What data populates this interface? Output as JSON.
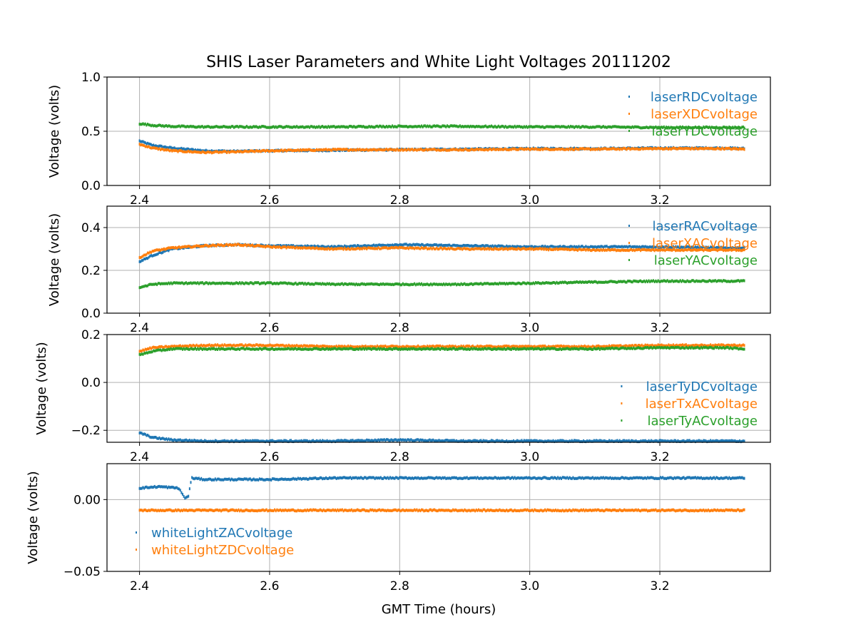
{
  "title": "SHIS Laser Parameters and White Light Voltages 20111202",
  "xlabel": "GMT Time (hours)",
  "colors": {
    "C0": "#1f77b4",
    "C1": "#ff7f0e",
    "C2": "#2ca02c",
    "grid": "#b0b0b0",
    "axes": "#000000"
  },
  "chart_data": [
    {
      "type": "scatter",
      "ylabel": "Voltage (volts)",
      "xlim": [
        2.35,
        3.37
      ],
      "ylim": [
        0.0,
        1.0
      ],
      "xticks": [
        2.4,
        2.6,
        2.8,
        3.0,
        3.2
      ],
      "xtick_labels": [
        "2.4",
        "2.6",
        "2.8",
        "3.0",
        "3.2"
      ],
      "yticks": [
        0.0,
        0.5,
        1.0
      ],
      "ytick_labels": [
        "0.0",
        "0.5",
        "1.0"
      ],
      "grid": true,
      "legend_position": "upper-right",
      "series": [
        {
          "name": "laserRDCvoltage",
          "color": "#1f77b4",
          "x": [
            2.4,
            2.42,
            2.45,
            2.5,
            2.55,
            2.6,
            2.7,
            2.8,
            2.9,
            3.0,
            3.1,
            3.2,
            3.3,
            3.33
          ],
          "y": [
            0.41,
            0.37,
            0.345,
            0.32,
            0.315,
            0.32,
            0.325,
            0.33,
            0.335,
            0.34,
            0.34,
            0.345,
            0.345,
            0.34
          ]
        },
        {
          "name": "laserXDCvoltage",
          "color": "#ff7f0e",
          "x": [
            2.4,
            2.42,
            2.45,
            2.5,
            2.55,
            2.6,
            2.7,
            2.8,
            2.9,
            3.0,
            3.1,
            3.2,
            3.3,
            3.33
          ],
          "y": [
            0.38,
            0.345,
            0.32,
            0.305,
            0.31,
            0.32,
            0.33,
            0.33,
            0.33,
            0.335,
            0.335,
            0.34,
            0.34,
            0.335
          ]
        },
        {
          "name": "laserYDCvoltage",
          "color": "#2ca02c",
          "x": [
            2.4,
            2.42,
            2.45,
            2.5,
            2.6,
            2.7,
            2.8,
            2.9,
            3.0,
            3.1,
            3.2,
            3.3,
            3.33
          ],
          "y": [
            0.57,
            0.555,
            0.545,
            0.54,
            0.54,
            0.54,
            0.545,
            0.545,
            0.54,
            0.54,
            0.535,
            0.535,
            0.535
          ]
        }
      ]
    },
    {
      "type": "scatter",
      "ylabel": "Voltage (volts)",
      "xlim": [
        2.35,
        3.37
      ],
      "ylim": [
        0.0,
        0.5
      ],
      "xticks": [
        2.4,
        2.6,
        2.8,
        3.0,
        3.2
      ],
      "xtick_labels": [
        "2.4",
        "2.6",
        "2.8",
        "3.0",
        "3.2"
      ],
      "yticks": [
        0.0,
        0.2,
        0.4
      ],
      "ytick_labels": [
        "0.0",
        "0.2",
        "0.4"
      ],
      "grid": true,
      "legend_position": "upper-right",
      "series": [
        {
          "name": "laserRACvoltage",
          "color": "#1f77b4",
          "x": [
            2.4,
            2.42,
            2.45,
            2.5,
            2.55,
            2.6,
            2.7,
            2.8,
            2.9,
            3.0,
            3.1,
            3.2,
            3.3,
            3.33
          ],
          "y": [
            0.24,
            0.27,
            0.3,
            0.315,
            0.32,
            0.315,
            0.31,
            0.32,
            0.315,
            0.31,
            0.31,
            0.31,
            0.305,
            0.305
          ]
        },
        {
          "name": "laserXACvoltage",
          "color": "#ff7f0e",
          "x": [
            2.4,
            2.42,
            2.45,
            2.5,
            2.55,
            2.6,
            2.7,
            2.8,
            2.9,
            3.0,
            3.1,
            3.2,
            3.3,
            3.33
          ],
          "y": [
            0.26,
            0.29,
            0.305,
            0.315,
            0.32,
            0.31,
            0.3,
            0.305,
            0.3,
            0.3,
            0.295,
            0.295,
            0.295,
            0.295
          ]
        },
        {
          "name": "laserYACvoltage",
          "color": "#2ca02c",
          "x": [
            2.4,
            2.42,
            2.45,
            2.5,
            2.6,
            2.7,
            2.8,
            2.9,
            3.0,
            3.1,
            3.2,
            3.3,
            3.33
          ],
          "y": [
            0.12,
            0.135,
            0.14,
            0.14,
            0.14,
            0.135,
            0.135,
            0.135,
            0.14,
            0.145,
            0.15,
            0.15,
            0.15
          ]
        }
      ]
    },
    {
      "type": "scatter",
      "ylabel": "Voltage (volts)",
      "xlim": [
        2.35,
        3.37
      ],
      "ylim": [
        -0.25,
        0.2
      ],
      "xticks": [
        2.4,
        2.6,
        2.8,
        3.0,
        3.2
      ],
      "xtick_labels": [
        "2.4",
        "2.6",
        "2.8",
        "3.0",
        "3.2"
      ],
      "yticks": [
        -0.2,
        0.0,
        0.2
      ],
      "ytick_labels": [
        "−0.2",
        "0.0",
        "0.2"
      ],
      "grid": true,
      "legend_position": "lower-right",
      "series": [
        {
          "name": "laserTyDCvoltage",
          "color": "#1f77b4",
          "x": [
            2.4,
            2.42,
            2.45,
            2.5,
            2.6,
            2.7,
            2.8,
            2.9,
            3.0,
            3.1,
            3.2,
            3.3,
            3.33
          ],
          "y": [
            -0.21,
            -0.23,
            -0.24,
            -0.245,
            -0.245,
            -0.245,
            -0.24,
            -0.245,
            -0.245,
            -0.245,
            -0.245,
            -0.245,
            -0.245
          ]
        },
        {
          "name": "laserTxACvoltage",
          "color": "#ff7f0e",
          "x": [
            2.4,
            2.42,
            2.45,
            2.5,
            2.6,
            2.7,
            2.8,
            2.9,
            3.0,
            3.1,
            3.2,
            3.3,
            3.33
          ],
          "y": [
            0.13,
            0.145,
            0.15,
            0.155,
            0.155,
            0.15,
            0.15,
            0.15,
            0.15,
            0.15,
            0.155,
            0.155,
            0.155
          ]
        },
        {
          "name": "laserTyACvoltage",
          "color": "#2ca02c",
          "x": [
            2.4,
            2.42,
            2.45,
            2.5,
            2.6,
            2.7,
            2.8,
            2.9,
            3.0,
            3.1,
            3.2,
            3.3,
            3.33
          ],
          "y": [
            0.115,
            0.13,
            0.14,
            0.14,
            0.14,
            0.14,
            0.14,
            0.14,
            0.14,
            0.14,
            0.145,
            0.145,
            0.14
          ]
        }
      ]
    },
    {
      "type": "scatter",
      "ylabel": "Voltage (volts)",
      "xlim": [
        2.35,
        3.37
      ],
      "ylim": [
        -0.05,
        0.025
      ],
      "xticks": [
        2.4,
        2.6,
        2.8,
        3.0,
        3.2
      ],
      "xtick_labels": [
        "2.4",
        "2.6",
        "2.8",
        "3.0",
        "3.2"
      ],
      "yticks": [
        -0.05,
        0.0
      ],
      "ytick_labels": [
        "−0.05",
        "0.00"
      ],
      "grid": true,
      "legend_position": "lower-left",
      "series": [
        {
          "name": "whiteLightZACvoltage",
          "color": "#1f77b4",
          "x": [
            2.4,
            2.43,
            2.46,
            2.47,
            2.475,
            2.48,
            2.5,
            2.6,
            2.7,
            2.8,
            2.9,
            3.0,
            3.1,
            3.2,
            3.3,
            3.33
          ],
          "y": [
            0.008,
            0.009,
            0.008,
            0.001,
            0.002,
            0.015,
            0.014,
            0.014,
            0.015,
            0.015,
            0.015,
            0.015,
            0.015,
            0.015,
            0.015,
            0.015
          ]
        },
        {
          "name": "whiteLightZDCvoltage",
          "color": "#ff7f0e",
          "x": [
            2.4,
            2.5,
            2.6,
            2.7,
            2.8,
            2.9,
            3.0,
            3.1,
            3.2,
            3.3,
            3.33
          ],
          "y": [
            -0.0075,
            -0.0075,
            -0.0075,
            -0.0075,
            -0.0075,
            -0.0075,
            -0.0075,
            -0.0075,
            -0.0075,
            -0.0075,
            -0.0075
          ]
        }
      ]
    }
  ]
}
